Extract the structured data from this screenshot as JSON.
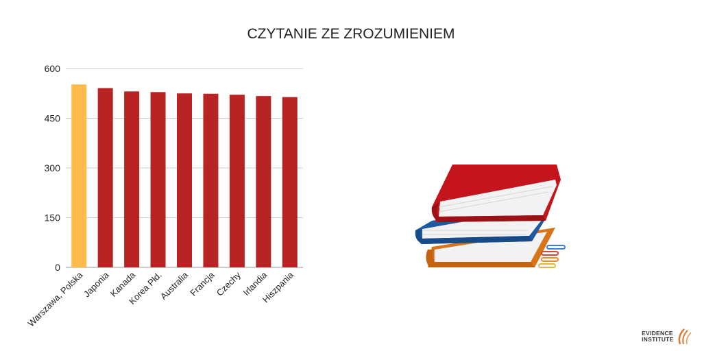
{
  "chart_data": {
    "type": "bar",
    "title": "CZYTANIE ZE ZROZUMIENIEM",
    "xlabel": "",
    "ylabel": "",
    "categories": [
      "Warszawa, Polska",
      "Japonia",
      "Kanada",
      "Korea Płd.",
      "Australia",
      "Francja",
      "Czechy",
      "Irlandia",
      "Hiszpania"
    ],
    "values": [
      552,
      541,
      531,
      529,
      525,
      524,
      521,
      517,
      514
    ],
    "highlight_index": 0,
    "ylim": [
      0,
      600
    ],
    "yticks": [
      0,
      150,
      300,
      450,
      600
    ],
    "grid": true,
    "colors": {
      "bar": "#b82424",
      "highlight": "#fdbb4a",
      "grid": "#cccccc",
      "text": "#222222"
    }
  },
  "illustration": {
    "icon": "books-stack-icon"
  },
  "logo": {
    "line1": "EVIDENCE",
    "line2": "INSTITUTE",
    "accent": "#e07a2e"
  }
}
